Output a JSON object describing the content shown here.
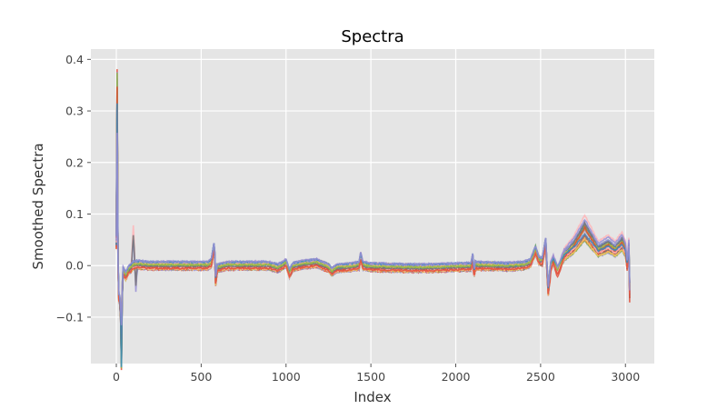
{
  "chart_data": {
    "type": "line",
    "title": "Spectra",
    "xlabel": "Index",
    "ylabel": "Smoothed Spectra",
    "xlim": [
      -150,
      3170
    ],
    "ylim": [
      -0.19,
      0.42
    ],
    "grid": true,
    "x_ticks": [
      0,
      500,
      1000,
      1500,
      2000,
      2500,
      3000
    ],
    "x_tick_labels": [
      "0",
      "500",
      "1000",
      "1500",
      "2000",
      "2500",
      "3000"
    ],
    "y_ticks": [
      -0.1,
      0.0,
      0.1,
      0.2,
      0.3,
      0.4
    ],
    "y_tick_labels": [
      "−0.1",
      "0.0",
      "0.1",
      "0.2",
      "0.3",
      "0.4"
    ],
    "x_max": 3025,
    "series_count": 24,
    "template_profile": [
      [
        0,
        0.02
      ],
      [
        3,
        0.2
      ],
      [
        6,
        0.12
      ],
      [
        12,
        -0.06
      ],
      [
        25,
        -0.07
      ],
      [
        40,
        -0.01
      ],
      [
        55,
        -0.02
      ],
      [
        70,
        -0.01
      ],
      [
        85,
        -0.005
      ],
      [
        100,
        0.0
      ],
      [
        120,
        0.002
      ],
      [
        200,
        0.0
      ],
      [
        300,
        0.0
      ],
      [
        400,
        0.0
      ],
      [
        480,
        0.0
      ],
      [
        540,
        0.0
      ],
      [
        560,
        0.005
      ],
      [
        575,
        0.035
      ],
      [
        580,
        0.02
      ],
      [
        585,
        -0.03
      ],
      [
        595,
        -0.005
      ],
      [
        650,
        0.0
      ],
      [
        800,
        0.0
      ],
      [
        900,
        0.0
      ],
      [
        950,
        -0.005
      ],
      [
        980,
        0.0
      ],
      [
        1000,
        0.005
      ],
      [
        1020,
        -0.015
      ],
      [
        1040,
        -0.002
      ],
      [
        1100,
        0.002
      ],
      [
        1180,
        0.005
      ],
      [
        1250,
        -0.004
      ],
      [
        1270,
        -0.012
      ],
      [
        1300,
        -0.005
      ],
      [
        1380,
        -0.003
      ],
      [
        1430,
        0.0
      ],
      [
        1440,
        0.018
      ],
      [
        1452,
        0.0
      ],
      [
        1500,
        -0.003
      ],
      [
        1800,
        -0.005
      ],
      [
        2000,
        -0.003
      ],
      [
        2090,
        -0.002
      ],
      [
        2100,
        0.015
      ],
      [
        2108,
        -0.02
      ],
      [
        2115,
        0.0
      ],
      [
        2300,
        -0.002
      ],
      [
        2400,
        0.0
      ],
      [
        2440,
        0.005
      ],
      [
        2470,
        0.03
      ],
      [
        2490,
        0.01
      ],
      [
        2510,
        0.008
      ],
      [
        2530,
        0.045
      ],
      [
        2545,
        -0.05
      ],
      [
        2560,
        0.0
      ],
      [
        2575,
        0.01
      ],
      [
        2600,
        -0.01
      ],
      [
        2640,
        0.02
      ],
      [
        2700,
        0.04
      ],
      [
        2760,
        0.07
      ],
      [
        2800,
        0.05
      ],
      [
        2840,
        0.03
      ],
      [
        2900,
        0.04
      ],
      [
        2940,
        0.03
      ],
      [
        2980,
        0.045
      ],
      [
        3000,
        0.03
      ],
      [
        3010,
        0.0
      ],
      [
        3020,
        0.035
      ],
      [
        3025,
        -0.05
      ]
    ],
    "template_spike_amplitude": 0.25,
    "template_spike_center": 4,
    "template_spike_width": 3,
    "template_dip_amplitude": -0.12,
    "template_dip_center": 30,
    "template_dip_width": 4,
    "noise_spread": 0.01,
    "series_colors": [
      "#E24A33",
      "#348ABD",
      "#988ED5",
      "#777777",
      "#FBC15E",
      "#8EBA42",
      "#FFB5B8"
    ]
  }
}
